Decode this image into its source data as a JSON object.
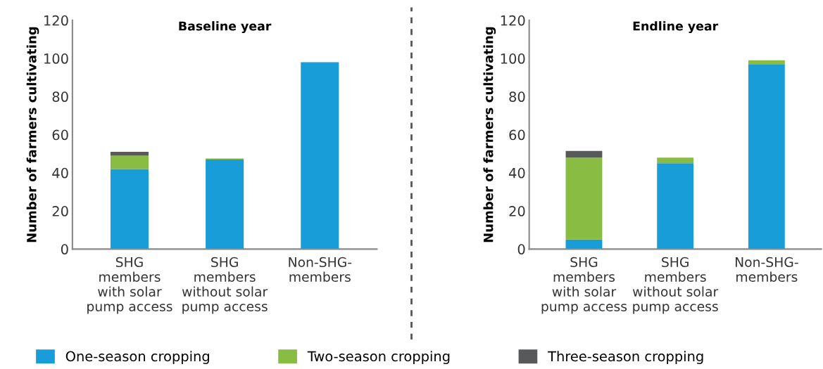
{
  "chart_data": [
    {
      "type": "bar",
      "title": "Baseline year",
      "ylabel": "Number of farmers cultivating",
      "categories": [
        "SHG\nmembers\nwith solar\npump access",
        "SHG\nmembers\nwithout solar\npump access",
        "Non-SHG-\nmembers"
      ],
      "stacked": true,
      "ylim": [
        0,
        120
      ],
      "yticks": [
        0,
        20,
        40,
        60,
        80,
        100,
        120
      ],
      "series": [
        {
          "color": "#189dd8",
          "values": [
            42,
            47,
            98
          ]
        },
        {
          "color": "#88bc42",
          "values": [
            7,
            0.5,
            0
          ]
        },
        {
          "color": "#58595b",
          "values": [
            2,
            0,
            0
          ]
        }
      ]
    },
    {
      "type": "bar",
      "title": "Endline year",
      "ylabel": "Number of farmers cultivating",
      "categories": [
        "SHG\nmembers\nwith solar\npump access",
        "SHG\nmembers\nwithout solar\npump access",
        "Non-SHG-\nmembers"
      ],
      "stacked": true,
      "ylim": [
        0,
        120
      ],
      "yticks": [
        0,
        20,
        40,
        60,
        80,
        100,
        120
      ],
      "legend": "bottom",
      "series": [
        {
          "name": "One-season cropping",
          "color": "#189dd8",
          "values": [
            5,
            45,
            97
          ]
        },
        {
          "name": "Two-season cropping",
          "color": "#88bc42",
          "values": [
            43,
            3,
            2
          ]
        },
        {
          "name": "Three-season cropping",
          "color": "#58595b",
          "values": [
            3.5,
            0,
            0
          ]
        }
      ]
    }
  ]
}
